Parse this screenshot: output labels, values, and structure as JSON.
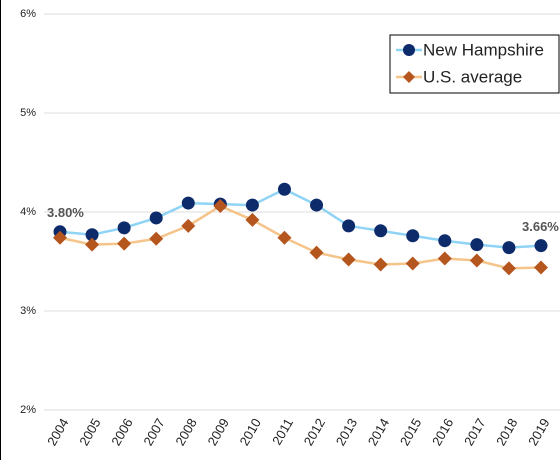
{
  "chart_data": {
    "type": "line",
    "categories": [
      "2004",
      "2005",
      "2006",
      "2007",
      "2008",
      "2009",
      "2010",
      "2011",
      "2012",
      "2013",
      "2014",
      "2015",
      "2016",
      "2017",
      "2018",
      "2019"
    ],
    "series": [
      {
        "name": "New Hampshire",
        "color": "#0d2a6b",
        "line_color": "#8fd3f5",
        "marker": "circle",
        "values": [
          3.8,
          3.77,
          3.84,
          3.94,
          4.09,
          4.08,
          4.07,
          4.23,
          4.07,
          3.86,
          3.81,
          3.76,
          3.71,
          3.67,
          3.64,
          3.66
        ],
        "value_labels": [
          "3.80%",
          null,
          null,
          null,
          null,
          null,
          null,
          null,
          null,
          null,
          null,
          null,
          null,
          null,
          null,
          "3.66%"
        ]
      },
      {
        "name": "U.S. average",
        "color": "#b5561e",
        "line_color": "#f5c48a",
        "marker": "diamond",
        "values": [
          3.74,
          3.67,
          3.68,
          3.73,
          3.86,
          4.06,
          3.92,
          3.74,
          3.59,
          3.52,
          3.47,
          3.48,
          3.53,
          3.51,
          3.43,
          3.44
        ]
      }
    ],
    "ylim": [
      2,
      6
    ],
    "yticks": [
      {
        "value": 2,
        "label": "2%"
      },
      {
        "value": 3,
        "label": "3%"
      },
      {
        "value": 4,
        "label": "4%"
      },
      {
        "value": 5,
        "label": "5%"
      },
      {
        "value": 6,
        "label": "6%"
      }
    ],
    "grid": true,
    "legend": "top-right"
  }
}
